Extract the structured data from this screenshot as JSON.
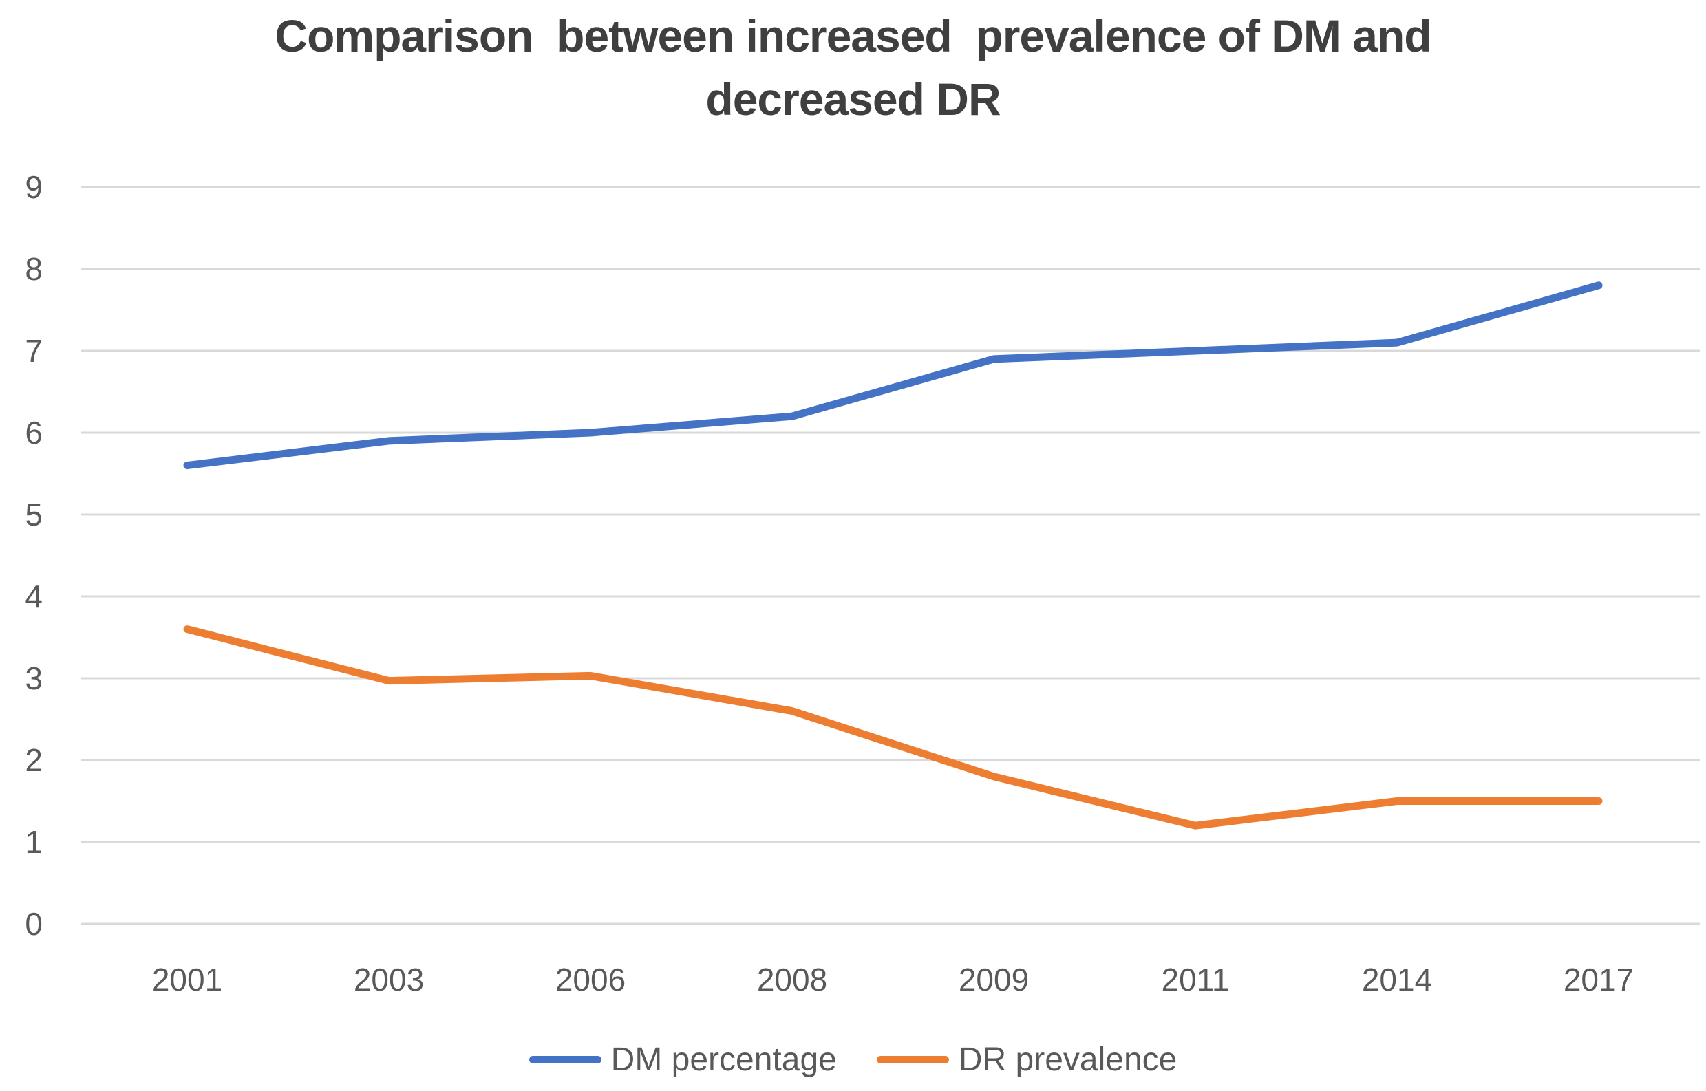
{
  "title": {
    "line1": "Comparison  between increased  prevalence of DM and",
    "line2": "decreased DR"
  },
  "legend": {
    "items": [
      {
        "label": "DM percentage",
        "color": "#4472C4"
      },
      {
        "label": "DR prevalence",
        "color": "#ED7D31"
      }
    ]
  },
  "chart_data": {
    "type": "line",
    "title": "Comparison between increased prevalence of DM and decreased DR",
    "categories": [
      "2001",
      "2003",
      "2006",
      "2008",
      "2009",
      "2011",
      "2014",
      "2017"
    ],
    "series": [
      {
        "name": "DM percentage",
        "color": "#4472C4",
        "values": [
          5.6,
          5.9,
          6.0,
          6.2,
          6.9,
          7.0,
          7.1,
          7.8
        ]
      },
      {
        "name": "DR prevalence",
        "color": "#ED7D31",
        "values": [
          3.6,
          2.97,
          3.03,
          2.6,
          1.8,
          1.2,
          1.5,
          1.5
        ]
      }
    ],
    "xlabel": "",
    "ylabel": "",
    "ylim": [
      0,
      9
    ],
    "yticks": [
      0,
      1,
      2,
      3,
      4,
      5,
      6,
      7,
      8,
      9
    ],
    "grid": "horizontal-only",
    "gridline_color": "#D9D9D9",
    "axis_label_color": "#595959",
    "title_color": "#3F3F3F",
    "legend_position": "bottom"
  }
}
